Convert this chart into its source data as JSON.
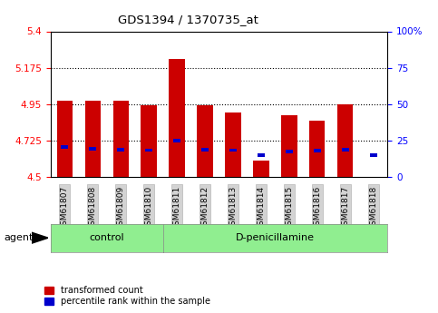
{
  "title": "GDS1394 / 1370735_at",
  "samples": [
    "GSM61807",
    "GSM61808",
    "GSM61809",
    "GSM61810",
    "GSM61811",
    "GSM61812",
    "GSM61813",
    "GSM61814",
    "GSM61815",
    "GSM61816",
    "GSM61817",
    "GSM61818"
  ],
  "red_values": [
    4.97,
    4.97,
    4.97,
    4.94,
    5.23,
    4.94,
    4.9,
    4.6,
    4.88,
    4.85,
    4.95,
    4.5
  ],
  "blue_values": [
    4.685,
    4.675,
    4.67,
    4.665,
    4.725,
    4.67,
    4.665,
    4.635,
    4.655,
    4.66,
    4.67,
    4.635
  ],
  "bar_bottom": 4.5,
  "ylim_left": [
    4.5,
    5.4
  ],
  "ylim_right": [
    0,
    100
  ],
  "yticks_left": [
    4.5,
    4.725,
    4.95,
    5.175,
    5.4
  ],
  "yticks_right": [
    0,
    25,
    50,
    75,
    100
  ],
  "hlines": [
    4.725,
    4.95,
    5.175
  ],
  "bar_color_red": "#CC0000",
  "bar_color_blue": "#0000CC",
  "bar_width": 0.55,
  "blue_bar_width": 0.28,
  "blue_bar_height": 0.022,
  "legend_red": "transformed count",
  "legend_blue": "percentile rank within the sample",
  "agent_label": "agent",
  "group_bg": "#90EE90"
}
